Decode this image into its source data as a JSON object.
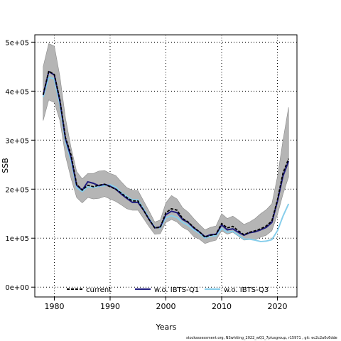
{
  "chart_data": {
    "type": "line",
    "xlabel": "Years",
    "ylabel": "SSB",
    "xlim": [
      1976.5,
      2023.5
    ],
    "ylim": [
      -20000,
      515000
    ],
    "x_ticks": [
      1980,
      1990,
      2000,
      2010,
      2020
    ],
    "x_tick_labels": [
      "1980",
      "1990",
      "2000",
      "2010",
      "2020"
    ],
    "y_ticks": [
      0,
      100000,
      200000,
      300000,
      400000,
      500000
    ],
    "y_tick_labels": [
      "0e+00",
      "1e+05",
      "2e+05",
      "3e+05",
      "4e+05",
      "5e+05"
    ],
    "grid": true,
    "legend_position": "bottom",
    "band": {
      "x": [
        1978,
        1979,
        1980,
        1981,
        1982,
        1983,
        1984,
        1985,
        1986,
        1987,
        1988,
        1989,
        1990,
        1991,
        1992,
        1993,
        1994,
        1995,
        1996,
        1997,
        1998,
        1999,
        2000,
        2001,
        2002,
        2003,
        2004,
        2005,
        2006,
        2007,
        2008,
        2009,
        2010,
        2011,
        2012,
        2013,
        2014,
        2015,
        2016,
        2017,
        2018,
        2019,
        2020,
        2021,
        2022
      ],
      "upper": [
        450000,
        497000,
        492000,
        430000,
        345000,
        285000,
        236000,
        221000,
        232000,
        232000,
        237000,
        238000,
        232000,
        228000,
        215000,
        203000,
        198000,
        197000,
        176000,
        155000,
        133000,
        137000,
        172000,
        187000,
        180000,
        162000,
        153000,
        140000,
        128000,
        117000,
        122000,
        125000,
        150000,
        140000,
        145000,
        137000,
        128000,
        133000,
        140000,
        150000,
        158000,
        170000,
        225000,
        300000,
        367000
      ],
      "lower": [
        340000,
        382000,
        377000,
        340000,
        268000,
        222000,
        183000,
        172000,
        183000,
        180000,
        181000,
        185000,
        180000,
        175000,
        168000,
        160000,
        157000,
        157000,
        140000,
        123000,
        108000,
        109000,
        132000,
        138000,
        133000,
        122000,
        116000,
        103000,
        98000,
        89000,
        93000,
        96000,
        115000,
        108000,
        112000,
        104000,
        96000,
        97000,
        97000,
        102000,
        106000,
        115000,
        148000,
        190000,
        225000
      ]
    },
    "series": [
      {
        "name": "current",
        "color": "#000000",
        "dashed": true,
        "x": [
          1978,
          1979,
          1980,
          1981,
          1982,
          1983,
          1984,
          1985,
          1986,
          1987,
          1988,
          1989,
          1990,
          1991,
          1992,
          1993,
          1994,
          1995,
          1996,
          1997,
          1998,
          1999,
          2000,
          2001,
          2002,
          2003,
          2004,
          2005,
          2006,
          2007,
          2008,
          2009,
          2010,
          2011,
          2012,
          2013,
          2014,
          2015,
          2016,
          2017,
          2018,
          2019,
          2020,
          2021,
          2022
        ],
        "values": [
          393000,
          441000,
          434000,
          382000,
          305000,
          270000,
          210000,
          198000,
          208000,
          205000,
          208000,
          210000,
          205000,
          200000,
          192000,
          183000,
          176000,
          176000,
          157000,
          138000,
          121000,
          122000,
          152000,
          160000,
          157000,
          140000,
          133000,
          122000,
          113000,
          102000,
          106000,
          108000,
          130000,
          121000,
          124000,
          115000,
          107000,
          112000,
          115000,
          119000,
          125000,
          135000,
          178000,
          233000,
          262000
        ]
      },
      {
        "name": "w.o. IBTS-Q1",
        "color": "#201d80",
        "dashed": false,
        "x": [
          1978,
          1979,
          1980,
          1981,
          1982,
          1983,
          1984,
          1985,
          1986,
          1987,
          1988,
          1989,
          1990,
          1991,
          1992,
          1993,
          1994,
          1995,
          1996,
          1997,
          1998,
          1999,
          2000,
          2001,
          2002,
          2003,
          2004,
          2005,
          2006,
          2007,
          2008,
          2009,
          2010,
          2011,
          2012,
          2013,
          2014,
          2015,
          2016,
          2017,
          2018,
          2019,
          2020,
          2021,
          2022
        ],
        "values": [
          392000,
          440000,
          433000,
          380000,
          303000,
          265000,
          208000,
          198000,
          215000,
          212000,
          207000,
          210000,
          206000,
          200000,
          190000,
          181000,
          173000,
          173000,
          157000,
          138000,
          121000,
          123000,
          148000,
          155000,
          152000,
          138000,
          132000,
          121000,
          113000,
          103000,
          107000,
          108000,
          127000,
          117000,
          119000,
          112000,
          106000,
          111000,
          113000,
          117000,
          122000,
          132000,
          175000,
          227000,
          257000
        ]
      },
      {
        "name": "w.o. IBTS-Q3",
        "color": "#87ceeb",
        "dashed": false,
        "x": [
          1978,
          1979,
          1980,
          1981,
          1982,
          1983,
          1984,
          1985,
          1986,
          1987,
          1988,
          1989,
          1990,
          1991,
          1992,
          1993,
          1994,
          1995,
          1996,
          1997,
          1998,
          1999,
          2000,
          2001,
          2002,
          2003,
          2004,
          2005,
          2006,
          2007,
          2008,
          2009,
          2010,
          2011,
          2012,
          2013,
          2014,
          2015,
          2016,
          2017,
          2018,
          2019,
          2020,
          2021,
          2022
        ],
        "values": [
          388000,
          428000,
          425000,
          372000,
          297000,
          258000,
          203000,
          195000,
          205000,
          203000,
          206000,
          207000,
          209000,
          204000,
          193000,
          185000,
          178000,
          178000,
          160000,
          140000,
          122000,
          121000,
          142000,
          146000,
          142000,
          132000,
          126000,
          117000,
          110000,
          100000,
          104000,
          105000,
          120000,
          112000,
          114000,
          106000,
          98000,
          98000,
          96000,
          93000,
          94000,
          97000,
          115000,
          145000,
          170000
        ]
      }
    ]
  },
  "footer_text": "stockassessment.org,  NSwhiting_2022_wQ1_7plusgroup,  r15971 ,  git:  ec2c2a0c6dde"
}
